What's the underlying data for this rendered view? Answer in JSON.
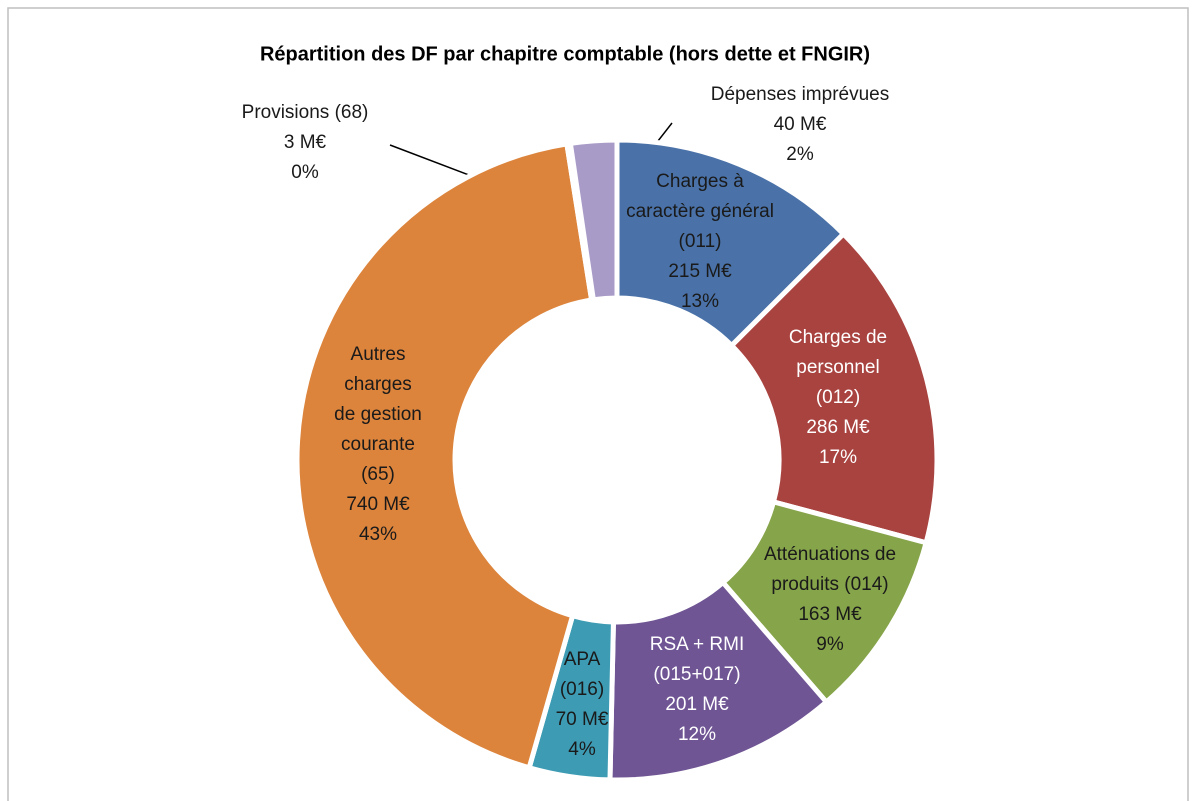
{
  "chart_data": {
    "type": "donut",
    "title": "Répartition des DF par chapitre comptable (hors dette et FNGIR)",
    "categories": [
      [
        "Charges à",
        "caractère général",
        "(011)"
      ],
      [
        "Charges  de",
        "personnel",
        "(012)"
      ],
      [
        "Atténuations de",
        "produits (014)"
      ],
      [
        "RSA + RMI",
        "(015+017)"
      ],
      [
        "APA",
        "(016)"
      ],
      [
        "Autres",
        "charges",
        "de gestion",
        "courante",
        "(65)"
      ],
      [
        "Provisions (68)"
      ],
      [
        "Dépenses imprévues"
      ]
    ],
    "values": [
      215,
      286,
      163,
      201,
      70,
      740,
      3,
      40
    ],
    "value_labels": [
      "215 M€",
      "286 M€",
      "163 M€",
      "201 M€",
      "70 M€",
      "740 M€",
      "3 M€",
      "40 M€"
    ],
    "percent_labels": [
      "13%",
      "17%",
      "9%",
      "12%",
      "4%",
      "43%",
      "0%",
      "2%"
    ],
    "colors": [
      "#4a72a8",
      "#a94340",
      "#86a44a",
      "#6f5594",
      "#3d9bb3",
      "#dc843c",
      "#d99694",
      "#a99bc8"
    ]
  }
}
